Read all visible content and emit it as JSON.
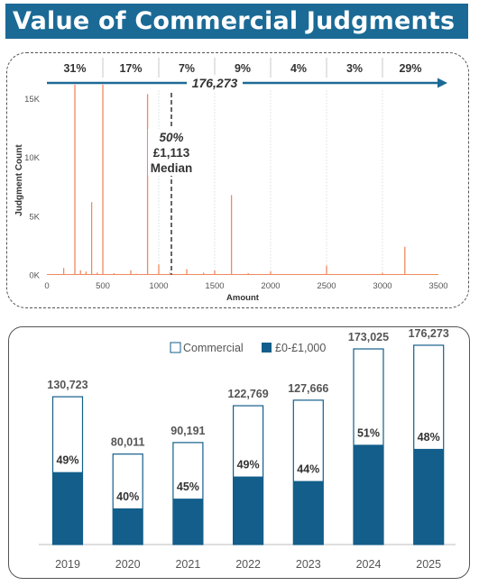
{
  "title": "Value of Commercial Judgments",
  "colors": {
    "title_bg": "#1b6a96",
    "spike": "#f08a5d",
    "arrow": "#1b6a96",
    "bar_fill": "#135e8a",
    "bar_outline": "#135e8a",
    "median_line": "#666666",
    "text": "#404040"
  },
  "chart_data": [
    {
      "type": "bar",
      "xlabel": "Amount",
      "ylabel": "Judgment Count",
      "xlim": [
        0,
        3500
      ],
      "ylim": [
        0,
        16500
      ],
      "x_ticks": [
        0,
        500,
        1000,
        1500,
        2000,
        2500,
        3000,
        3500
      ],
      "y_ticks": [
        {
          "value": 0,
          "label": "0K"
        },
        {
          "value": 5000,
          "label": "5K"
        },
        {
          "value": 10000,
          "label": "10K"
        },
        {
          "value": 15000,
          "label": "15K"
        }
      ],
      "grid": false,
      "spikes": [
        {
          "x": 150,
          "y": 600
        },
        {
          "x": 250,
          "y": 16200
        },
        {
          "x": 300,
          "y": 400
        },
        {
          "x": 350,
          "y": 300
        },
        {
          "x": 400,
          "y": 6200
        },
        {
          "x": 450,
          "y": 200
        },
        {
          "x": 500,
          "y": 16200
        },
        {
          "x": 600,
          "y": 150
        },
        {
          "x": 750,
          "y": 400
        },
        {
          "x": 800,
          "y": 100
        },
        {
          "x": 900,
          "y": 15400
        },
        {
          "x": 1000,
          "y": 900
        },
        {
          "x": 1100,
          "y": 200
        },
        {
          "x": 1250,
          "y": 500
        },
        {
          "x": 1400,
          "y": 200
        },
        {
          "x": 1500,
          "y": 400
        },
        {
          "x": 1650,
          "y": 6800
        },
        {
          "x": 1800,
          "y": 150
        },
        {
          "x": 2000,
          "y": 300
        },
        {
          "x": 2500,
          "y": 800
        },
        {
          "x": 3000,
          "y": 200
        },
        {
          "x": 3200,
          "y": 2400
        }
      ],
      "bands": [
        {
          "from": 0,
          "to": 500,
          "label": "31%"
        },
        {
          "from": 500,
          "to": 1000,
          "label": "17%"
        },
        {
          "from": 1000,
          "to": 1500,
          "label": "7%"
        },
        {
          "from": 1500,
          "to": 2000,
          "label": "9%"
        },
        {
          "from": 2000,
          "to": 2500,
          "label": "4%"
        },
        {
          "from": 2500,
          "to": 3000,
          "label": "3%"
        },
        {
          "from": 3000,
          "to": 3500,
          "label": "29%"
        }
      ],
      "total_label": "176,273",
      "median": {
        "x": 1113,
        "pct": "50%",
        "amount": "£1,113",
        "label": "Median"
      }
    },
    {
      "type": "bar",
      "stacked_overlay": true,
      "categories": [
        "2019",
        "2020",
        "2021",
        "2022",
        "2023",
        "2024",
        "2025"
      ],
      "ylim": [
        0,
        185000
      ],
      "legend": [
        "Commercial",
        "£0-£1,000"
      ],
      "legend_position": "top-center",
      "series": [
        {
          "name": "Commercial",
          "values": [
            130723,
            80011,
            90191,
            122769,
            127666,
            173025,
            176273
          ]
        },
        {
          "name": "£0-£1,000",
          "values": [
            64054,
            32004,
            40586,
            60157,
            56173,
            88243,
            84611
          ]
        }
      ],
      "total_labels": [
        "130,723",
        "80,011",
        "90,191",
        "122,769",
        "127,666",
        "173,025",
        "176,273"
      ],
      "pct_labels": [
        "49%",
        "40%",
        "45%",
        "49%",
        "44%",
        "51%",
        "48%"
      ]
    }
  ]
}
